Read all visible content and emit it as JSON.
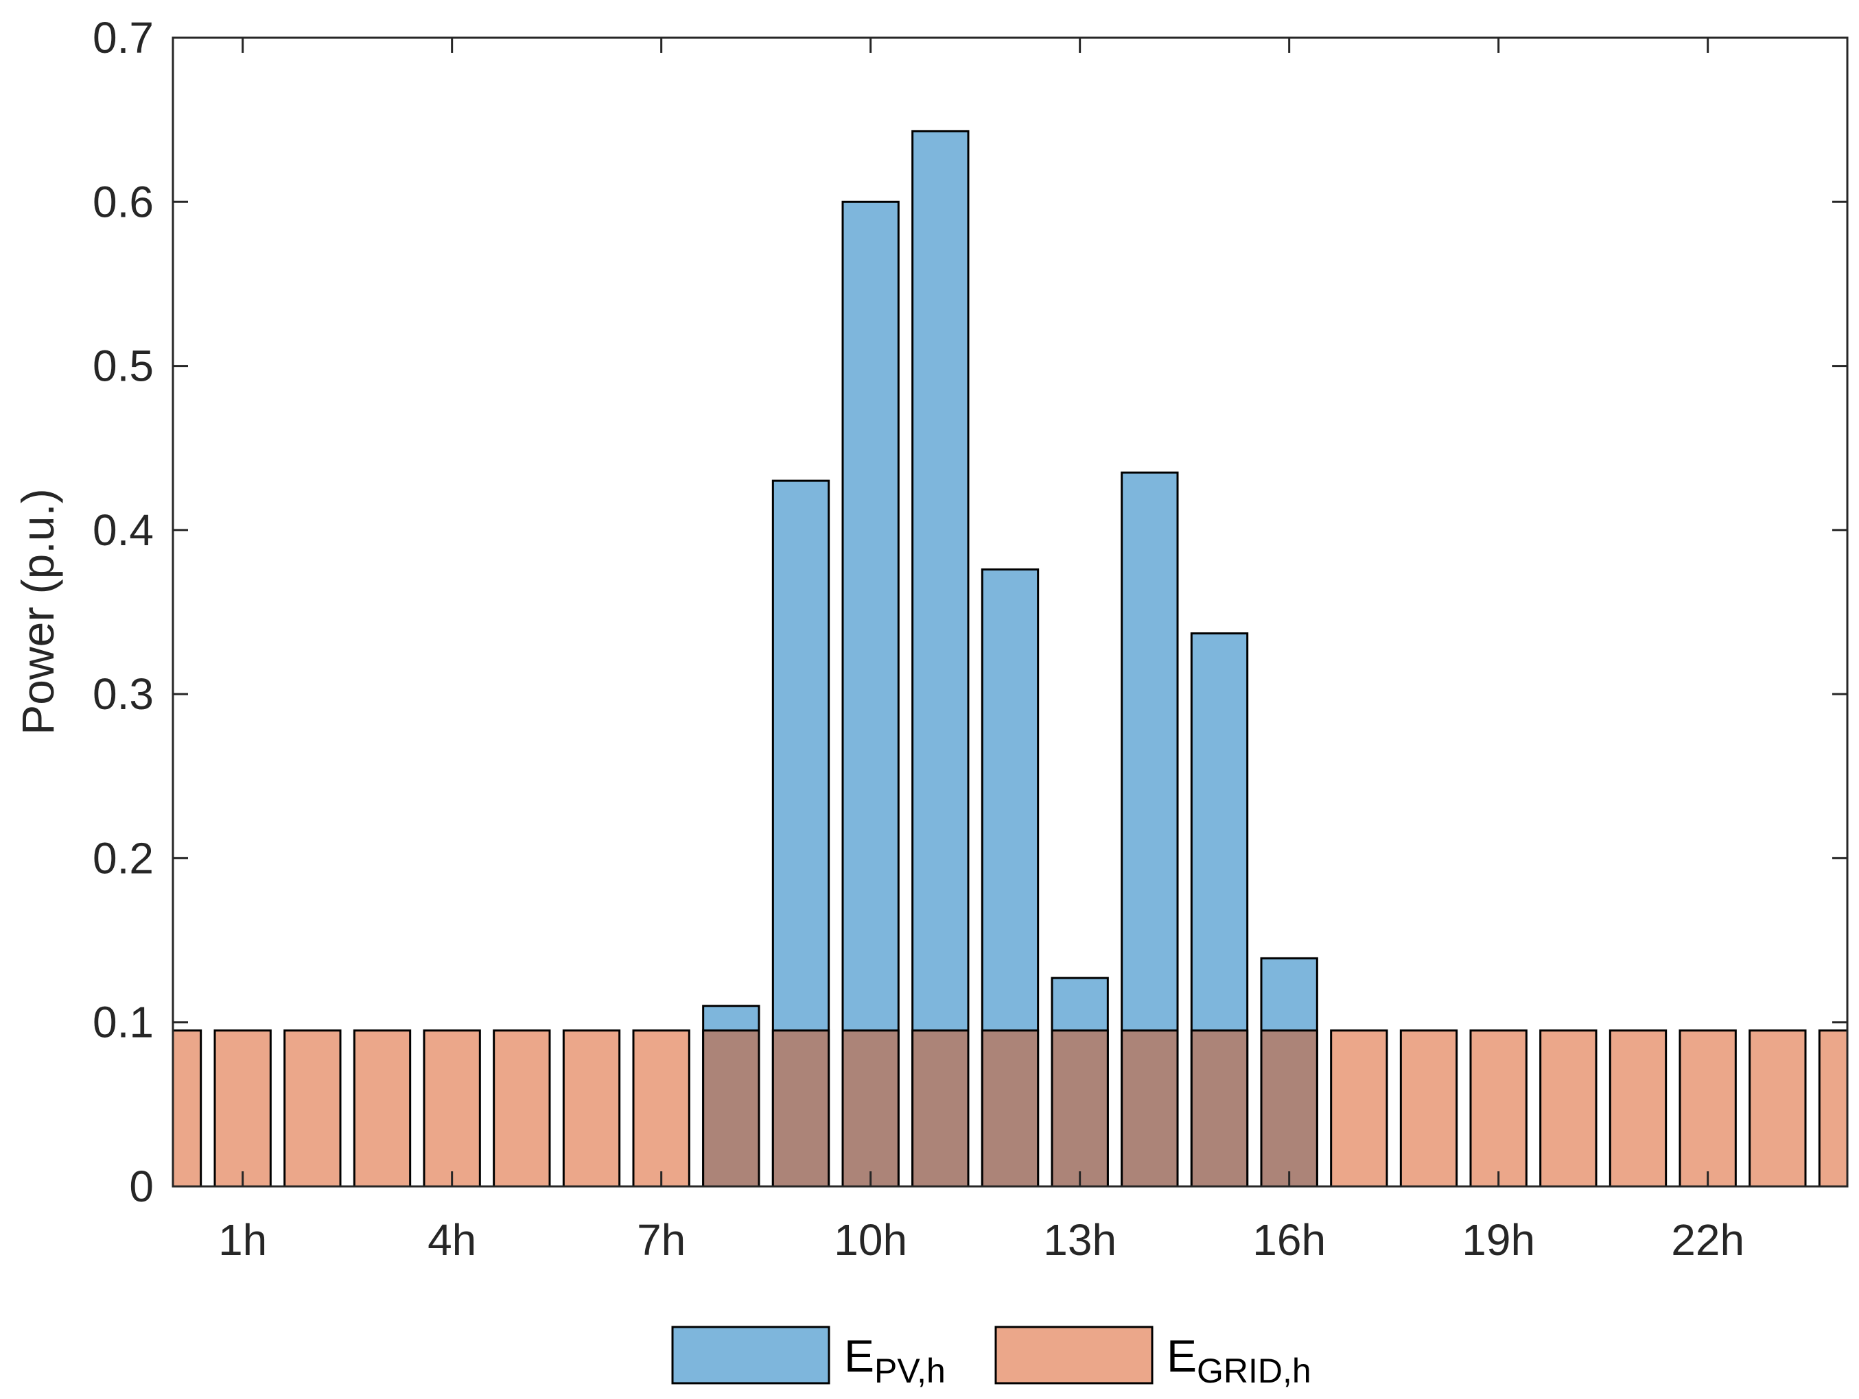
{
  "chart_data": {
    "type": "bar",
    "title": "",
    "xlabel": "",
    "ylabel": "Power (p.u.)",
    "ylim": [
      0,
      0.7
    ],
    "xlim": [
      0,
      24
    ],
    "yticks": [
      "0",
      "0.1",
      "0.2",
      "0.3",
      "0.4",
      "0.5",
      "0.6",
      "0.7"
    ],
    "ytick_values": [
      0,
      0.1,
      0.2,
      0.3,
      0.4,
      0.5,
      0.6,
      0.7
    ],
    "xticks": [
      "1h",
      "4h",
      "7h",
      "10h",
      "13h",
      "16h",
      "19h",
      "22h"
    ],
    "xtick_positions": [
      1,
      4,
      7,
      10,
      13,
      16,
      19,
      22
    ],
    "x": [
      0,
      1,
      2,
      3,
      4,
      5,
      6,
      7,
      8,
      9,
      10,
      11,
      12,
      13,
      14,
      15,
      16,
      17,
      18,
      19,
      20,
      21,
      22,
      23,
      24
    ],
    "series": [
      {
        "name": "E_PV,h",
        "color": "#7EB6DC",
        "values": [
          0,
          0,
          0,
          0,
          0,
          0,
          0,
          0,
          0.11,
          0.43,
          0.6,
          0.643,
          0.376,
          0.127,
          0.435,
          0.337,
          0.139,
          0,
          0,
          0,
          0,
          0,
          0,
          0,
          0
        ]
      },
      {
        "name": "E_GRID,h",
        "color": "#EBA78A",
        "values": [
          0.095,
          0.095,
          0.095,
          0.095,
          0.095,
          0.095,
          0.095,
          0.095,
          0.095,
          0.095,
          0.095,
          0.095,
          0.095,
          0.095,
          0.095,
          0.095,
          0.095,
          0.095,
          0.095,
          0.095,
          0.095,
          0.095,
          0.095,
          0.095,
          0.095
        ]
      }
    ],
    "overlap_color": "#AC8478",
    "legend": {
      "placement": "bottom-center",
      "entries": [
        {
          "base": "E",
          "sub": "PV,h",
          "color": "#7EB6DC"
        },
        {
          "base": "E",
          "sub": "GRID,h",
          "color": "#EBA78A"
        }
      ]
    }
  }
}
